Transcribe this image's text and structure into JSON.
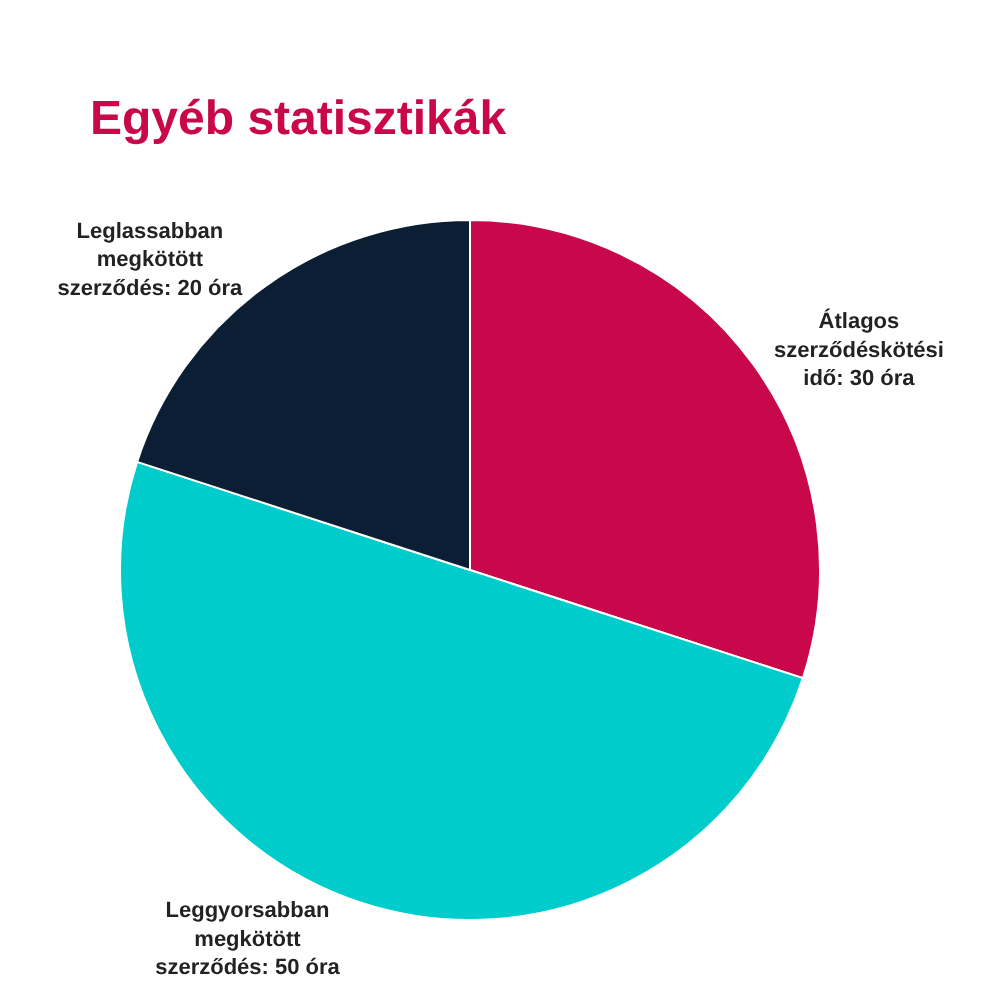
{
  "chart_data": {
    "type": "pie",
    "title": "Egyéb statisztikák",
    "categories": [
      "Átlagos\nszerződéskötési\nidő: 30 óra",
      "Leggyorsabban\nmegkötött\nszerződés: 50 óra",
      "Leglassabban\nmegkötött\nszerződés: 20 óra"
    ],
    "values": [
      30,
      50,
      20
    ],
    "colors": [
      "#c8084a",
      "#00cccc",
      "#0b1e33"
    ],
    "legend": false
  }
}
